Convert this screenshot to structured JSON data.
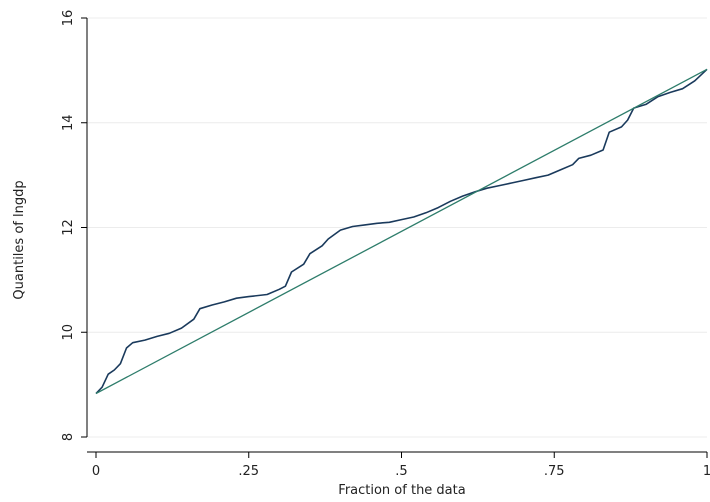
{
  "chart_data": {
    "type": "line",
    "title": "",
    "xlabel": "Fraction of the data",
    "ylabel": "Quantiles of lngdp",
    "xlim": [
      0,
      1
    ],
    "ylim": [
      8,
      16
    ],
    "grid": true,
    "x_ticks": [
      {
        "value": 0,
        "label": "0"
      },
      {
        "value": 0.25,
        "label": ".25"
      },
      {
        "value": 0.5,
        "label": ".5"
      },
      {
        "value": 0.75,
        "label": ".75"
      },
      {
        "value": 1,
        "label": "1"
      }
    ],
    "y_ticks": [
      {
        "value": 8,
        "label": "8"
      },
      {
        "value": 10,
        "label": "10"
      },
      {
        "value": 12,
        "label": "12"
      },
      {
        "value": 14,
        "label": "14"
      },
      {
        "value": 16,
        "label": "16"
      }
    ],
    "series": [
      {
        "color": "#1a3a5c",
        "points": [
          [
            0.0,
            8.83
          ],
          [
            0.01,
            8.95
          ],
          [
            0.02,
            9.2
          ],
          [
            0.03,
            9.28
          ],
          [
            0.04,
            9.4
          ],
          [
            0.05,
            9.7
          ],
          [
            0.06,
            9.8
          ],
          [
            0.08,
            9.85
          ],
          [
            0.1,
            9.92
          ],
          [
            0.12,
            9.98
          ],
          [
            0.14,
            10.08
          ],
          [
            0.16,
            10.25
          ],
          [
            0.17,
            10.45
          ],
          [
            0.19,
            10.52
          ],
          [
            0.21,
            10.58
          ],
          [
            0.23,
            10.65
          ],
          [
            0.25,
            10.68
          ],
          [
            0.28,
            10.72
          ],
          [
            0.3,
            10.82
          ],
          [
            0.31,
            10.88
          ],
          [
            0.32,
            11.15
          ],
          [
            0.34,
            11.3
          ],
          [
            0.35,
            11.5
          ],
          [
            0.37,
            11.65
          ],
          [
            0.38,
            11.78
          ],
          [
            0.4,
            11.95
          ],
          [
            0.42,
            12.02
          ],
          [
            0.44,
            12.05
          ],
          [
            0.46,
            12.08
          ],
          [
            0.48,
            12.1
          ],
          [
            0.5,
            12.15
          ],
          [
            0.52,
            12.2
          ],
          [
            0.54,
            12.28
          ],
          [
            0.56,
            12.38
          ],
          [
            0.58,
            12.5
          ],
          [
            0.6,
            12.6
          ],
          [
            0.62,
            12.68
          ],
          [
            0.64,
            12.75
          ],
          [
            0.66,
            12.8
          ],
          [
            0.68,
            12.85
          ],
          [
            0.7,
            12.9
          ],
          [
            0.72,
            12.95
          ],
          [
            0.74,
            13.0
          ],
          [
            0.76,
            13.1
          ],
          [
            0.78,
            13.2
          ],
          [
            0.79,
            13.32
          ],
          [
            0.81,
            13.38
          ],
          [
            0.83,
            13.48
          ],
          [
            0.84,
            13.82
          ],
          [
            0.86,
            13.92
          ],
          [
            0.87,
            14.05
          ],
          [
            0.88,
            14.28
          ],
          [
            0.9,
            14.35
          ],
          [
            0.92,
            14.5
          ],
          [
            0.94,
            14.58
          ],
          [
            0.96,
            14.65
          ],
          [
            0.98,
            14.8
          ],
          [
            1.0,
            15.02
          ]
        ]
      },
      {
        "color": "#2e7d6b",
        "points": [
          [
            0.0,
            8.83
          ],
          [
            1.0,
            15.02
          ]
        ]
      }
    ]
  }
}
